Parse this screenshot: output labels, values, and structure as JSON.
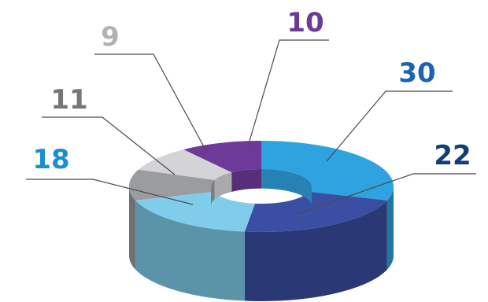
{
  "chart_data": {
    "type": "pie",
    "style": "3d-donut",
    "values": [
      30,
      22,
      18,
      11,
      9,
      10
    ],
    "labels": [
      "30",
      "22",
      "18",
      "11",
      "9",
      "10"
    ],
    "colors": [
      "#2ea3e0",
      "#3a4fa3",
      "#7fcdeb",
      "#9a9ca0",
      "#d4d4d6",
      "#6d3a9a"
    ],
    "label_colors": [
      "#1a64b4",
      "#123e76",
      "#1b8fd1",
      "#74777a",
      "#b0b2b5",
      "#6d3a9a"
    ]
  }
}
